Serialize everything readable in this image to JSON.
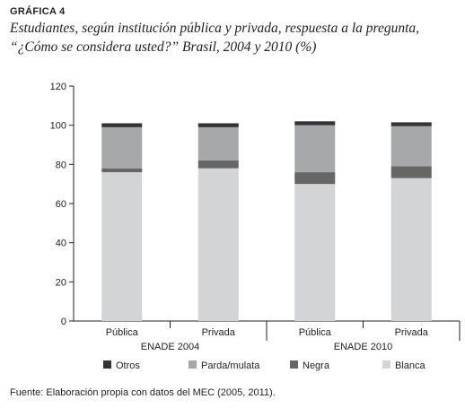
{
  "figure_label": "GRÁFICA 4",
  "title_line1": "Estudiantes, según institución pública y privada, respuesta a la pregunta,",
  "title_line2": "“¿Cómo se considera usted?” Brasil, 2004 y 2010 (%)",
  "source": "Fuente: Elaboración propia con datos del MEC (2005, 2011).",
  "chart_data": {
    "type": "bar",
    "stacked": true,
    "categories": [
      "Pública",
      "Privada",
      "Pública",
      "Privada"
    ],
    "groups": [
      {
        "label": "ENADE 2004",
        "categories": [
          "Pública",
          "Privada"
        ]
      },
      {
        "label": "ENADE 2010",
        "categories": [
          "Pública",
          "Privada"
        ]
      }
    ],
    "series": [
      {
        "name": "Blanca",
        "values": [
          76,
          78,
          70,
          73
        ],
        "color": "#d3d4d6"
      },
      {
        "name": "Negra",
        "values": [
          2,
          4,
          6,
          6
        ],
        "color": "#666666"
      },
      {
        "name": "Parda/mulata",
        "values": [
          21,
          17,
          24,
          20.5
        ],
        "color": "#a7a8aa"
      },
      {
        "name": "Otros",
        "values": [
          2,
          2,
          2,
          2
        ],
        "color": "#333333"
      }
    ],
    "legend_order": [
      "Otros",
      "Parda/mulata",
      "Negra",
      "Blanca"
    ],
    "legend_position": "bottom",
    "ylim": [
      0,
      120
    ],
    "yticks": [
      0,
      20,
      40,
      60,
      80,
      100,
      120
    ],
    "xlabel": "",
    "ylabel": "",
    "grid": false
  }
}
